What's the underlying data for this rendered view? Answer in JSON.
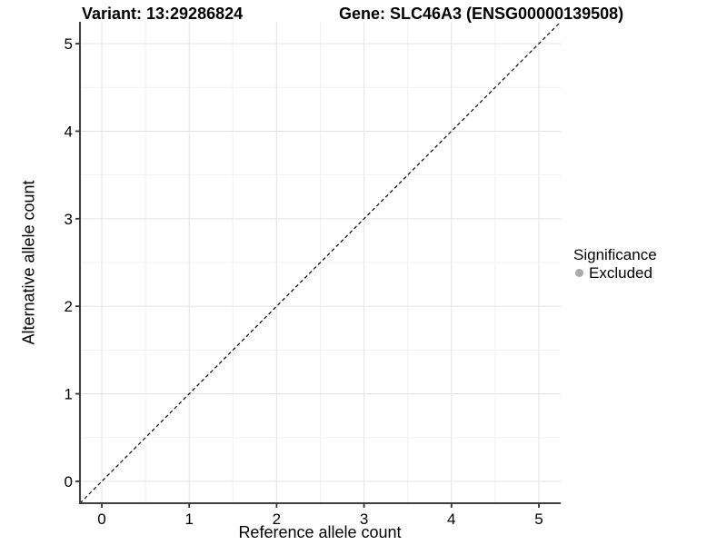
{
  "chart_data": {
    "type": "scatter",
    "title_left": "Variant: 13:29286824",
    "title_right": "Gene: SLC46A3 (ENSG00000139508)",
    "xlabel": "Reference allele count",
    "ylabel": "Alternative allele count",
    "xlim": [
      -0.25,
      5.25
    ],
    "ylim": [
      -0.25,
      5.25
    ],
    "xticks": [
      0,
      1,
      2,
      3,
      4,
      5
    ],
    "yticks": [
      0,
      1,
      2,
      3,
      4,
      5
    ],
    "grid": "major+minor",
    "legend_position": "right",
    "points": [],
    "identity_line": {
      "style": "dashed",
      "color": "#000000",
      "from_xy": [
        -0.25,
        -0.25
      ],
      "to_xy": [
        5.25,
        5.25
      ]
    },
    "legend": {
      "title": "Significance",
      "items": [
        {
          "label": "Excluded",
          "color": "#aaaaaa",
          "marker": "circle"
        }
      ]
    }
  },
  "colors": {
    "background": "#ffffff",
    "axis_line": "#3f3f3f",
    "tick_mark": "#333333",
    "grid_major": "#e3e3e3",
    "grid_minor": "#f1f1f1",
    "text": "#000000"
  }
}
